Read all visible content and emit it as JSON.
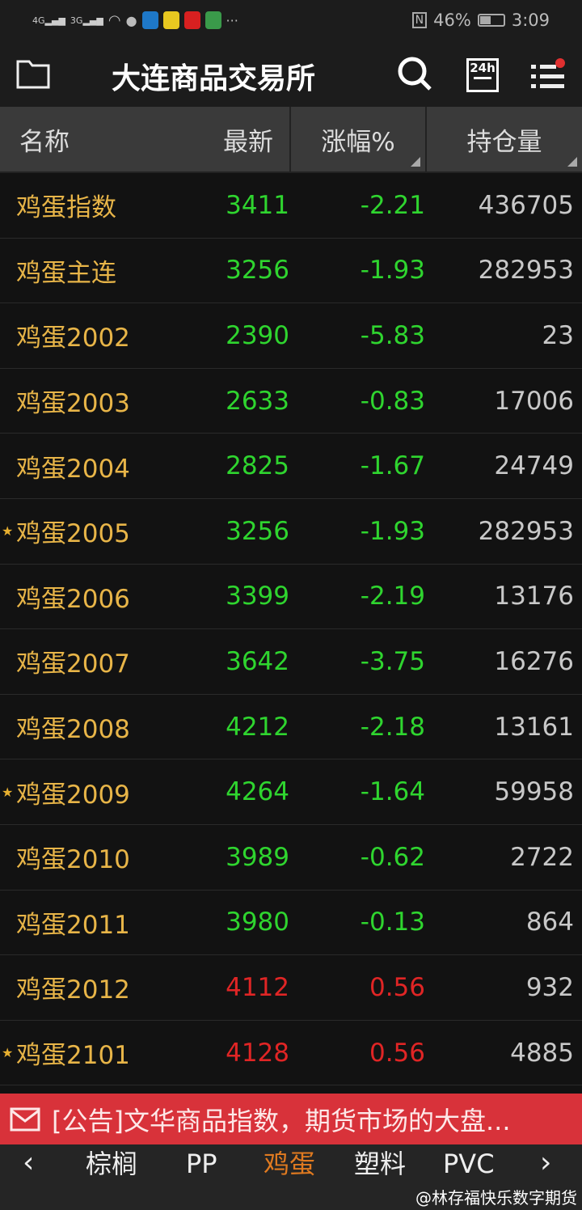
{
  "status_bar": {
    "network1": "4G",
    "network2": "3G",
    "nfc": "N",
    "battery": "46%",
    "battery_level": 0.46,
    "time": "3:09"
  },
  "header": {
    "title": "大连商品交易所",
    "icons": [
      "folder-icon",
      "search-icon",
      "news-24h-icon",
      "menu-list-icon"
    ],
    "news_label": "24h"
  },
  "columns": {
    "name": "名称",
    "last": "最新",
    "change": "涨幅%",
    "open_interest": "持仓量"
  },
  "colors": {
    "up": "#e02525",
    "down": "#2fd52f",
    "name": "#e8b548",
    "ticker_bg": "#d8323a",
    "active_tab": "#e07a20"
  },
  "rows": [
    {
      "name": "鸡蛋指数",
      "last": "3411",
      "change": "-2.21",
      "oi": "436705",
      "star": false,
      "dir": "down"
    },
    {
      "name": "鸡蛋主连",
      "last": "3256",
      "change": "-1.93",
      "oi": "282953",
      "star": false,
      "dir": "down"
    },
    {
      "name": "鸡蛋2002",
      "last": "2390",
      "change": "-5.83",
      "oi": "23",
      "star": false,
      "dir": "down"
    },
    {
      "name": "鸡蛋2003",
      "last": "2633",
      "change": "-0.83",
      "oi": "17006",
      "star": false,
      "dir": "down"
    },
    {
      "name": "鸡蛋2004",
      "last": "2825",
      "change": "-1.67",
      "oi": "24749",
      "star": false,
      "dir": "down"
    },
    {
      "name": "鸡蛋2005",
      "last": "3256",
      "change": "-1.93",
      "oi": "282953",
      "star": true,
      "dir": "down"
    },
    {
      "name": "鸡蛋2006",
      "last": "3399",
      "change": "-2.19",
      "oi": "13176",
      "star": false,
      "dir": "down"
    },
    {
      "name": "鸡蛋2007",
      "last": "3642",
      "change": "-3.75",
      "oi": "16276",
      "star": false,
      "dir": "down"
    },
    {
      "name": "鸡蛋2008",
      "last": "4212",
      "change": "-2.18",
      "oi": "13161",
      "star": false,
      "dir": "down"
    },
    {
      "name": "鸡蛋2009",
      "last": "4264",
      "change": "-1.64",
      "oi": "59958",
      "star": true,
      "dir": "down"
    },
    {
      "name": "鸡蛋2010",
      "last": "3989",
      "change": "-0.62",
      "oi": "2722",
      "star": false,
      "dir": "down"
    },
    {
      "name": "鸡蛋2011",
      "last": "3980",
      "change": "-0.13",
      "oi": "864",
      "star": false,
      "dir": "down"
    },
    {
      "name": "鸡蛋2012",
      "last": "4112",
      "change": "0.56",
      "oi": "932",
      "star": false,
      "dir": "up"
    },
    {
      "name": "鸡蛋2101",
      "last": "4128",
      "change": "0.56",
      "oi": "4885",
      "star": true,
      "dir": "up"
    }
  ],
  "ticker": {
    "text": "[公告]文华商品指数，期货市场的大盘..."
  },
  "bottom_nav": {
    "tabs": [
      "棕榈",
      "PP",
      "鸡蛋",
      "塑料",
      "PVC"
    ],
    "active": "鸡蛋"
  },
  "watermark": "@林存福快乐数字期货"
}
